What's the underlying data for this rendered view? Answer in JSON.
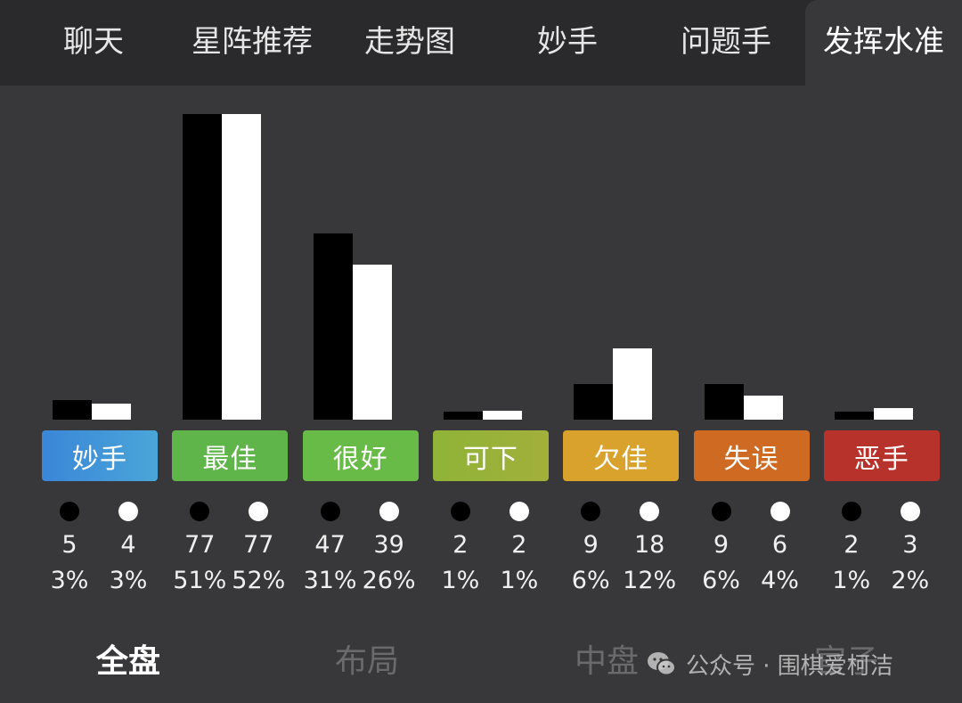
{
  "top_tabs": [
    "聊天",
    "星阵推荐",
    "走势图",
    "妙手",
    "问题手",
    "发挥水准"
  ],
  "active_top_tab": "发挥水准",
  "categories": [
    {
      "label": "妙手",
      "color": "#3a86d8",
      "color2": "#4aa6d8",
      "black_count": "5",
      "black_pct": "3%",
      "white_count": "4",
      "white_pct": "3%"
    },
    {
      "label": "最佳",
      "color": "#5fb54a",
      "color2": "#5fb54a",
      "black_count": "77",
      "black_pct": "51%",
      "white_count": "77",
      "white_pct": "52%"
    },
    {
      "label": "很好",
      "color": "#69bb48",
      "color2": "#69bb48",
      "black_count": "47",
      "black_pct": "31%",
      "white_count": "39",
      "white_pct": "26%"
    },
    {
      "label": "可下",
      "color": "#8fb338",
      "color2": "#a2b03a",
      "black_count": "2",
      "black_pct": "1%",
      "white_count": "2",
      "white_pct": "1%"
    },
    {
      "label": "欠佳",
      "color": "#d8a22c",
      "color2": "#d8a22c",
      "black_count": "9",
      "black_pct": "6%",
      "white_count": "18",
      "white_pct": "12%"
    },
    {
      "label": "失误",
      "color": "#cf6a22",
      "color2": "#cf6a22",
      "black_count": "9",
      "black_pct": "6%",
      "white_count": "6",
      "white_pct": "4%"
    },
    {
      "label": "恶手",
      "color": "#b8322c",
      "color2": "#b8322c",
      "black_count": "2",
      "black_pct": "1%",
      "white_count": "3",
      "white_pct": "2%"
    }
  ],
  "chart_data": {
    "type": "bar",
    "categories": [
      "妙手",
      "最佳",
      "很好",
      "可下",
      "欠佳",
      "失误",
      "恶手"
    ],
    "series": [
      {
        "values": [
          5,
          77,
          47,
          2,
          9,
          9,
          2
        ]
      },
      {
        "values": [
          4,
          77,
          39,
          2,
          18,
          6,
          3
        ]
      }
    ],
    "ylim": [
      0,
      77
    ]
  },
  "bottom_tabs": [
    "全盘",
    "布局",
    "中盘",
    "官子"
  ],
  "active_bottom_tab": "全盘",
  "watermark": "公众号 · 围棋爱柯洁"
}
